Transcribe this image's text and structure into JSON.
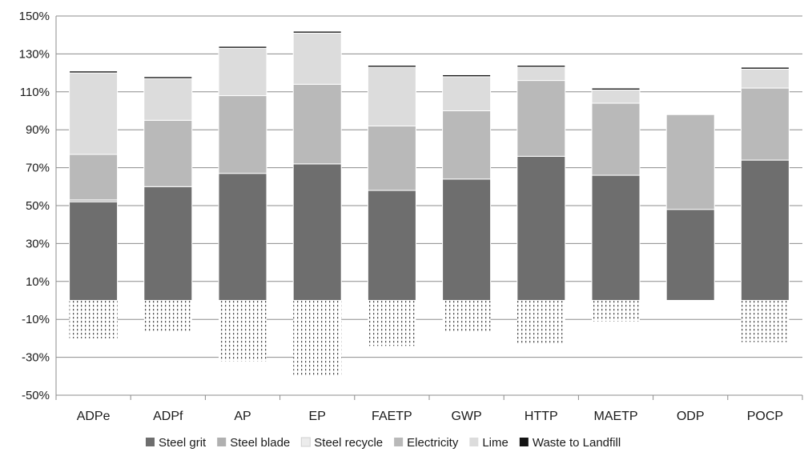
{
  "chart_data": {
    "type": "bar",
    "stacked": true,
    "categories": [
      "ADPe",
      "ADPf",
      "AP",
      "EP",
      "FAETP",
      "GWP",
      "HTTP",
      "MAETP",
      "ODP",
      "POCP"
    ],
    "series": [
      {
        "name": "Steel grit",
        "color": "#6e6e6e",
        "pattern": "solid",
        "values": [
          52,
          60,
          67,
          72,
          58,
          64,
          76,
          66,
          48,
          74
        ]
      },
      {
        "name": "Steel blade",
        "color": "#b0b0b0",
        "pattern": "solid",
        "values": [
          1,
          0,
          0,
          0,
          0,
          0,
          0,
          0,
          0,
          0
        ]
      },
      {
        "name": "Steel recycle",
        "color": "#f0f0f0",
        "pattern": "dotted",
        "values": [
          -20,
          -16,
          -32,
          -40,
          -24,
          -17,
          -23,
          -11,
          0,
          -22
        ]
      },
      {
        "name": "Electricity",
        "color": "#b9b9b9",
        "pattern": "solid",
        "values": [
          24,
          35,
          41,
          42,
          34,
          36,
          40,
          38,
          50,
          38
        ]
      },
      {
        "name": "Lime",
        "color": "#dcdcdc",
        "pattern": "solid",
        "values": [
          43,
          22,
          25,
          27,
          31,
          18,
          7,
          7,
          0,
          10
        ]
      },
      {
        "name": "Waste to Landfill",
        "color": "#141414",
        "pattern": "solid",
        "values": [
          1,
          1,
          1,
          1,
          1,
          1,
          1,
          1,
          0,
          1
        ]
      }
    ],
    "y_ticks": [
      "150%",
      "130%",
      "110%",
      "90%",
      "70%",
      "50%",
      "30%",
      "10%",
      "-10%",
      "-30%",
      "-50%"
    ],
    "ylim": [
      -50,
      150
    ],
    "title": "",
    "xlabel": "",
    "ylabel": "",
    "grid": true,
    "legend_position": "bottom"
  }
}
